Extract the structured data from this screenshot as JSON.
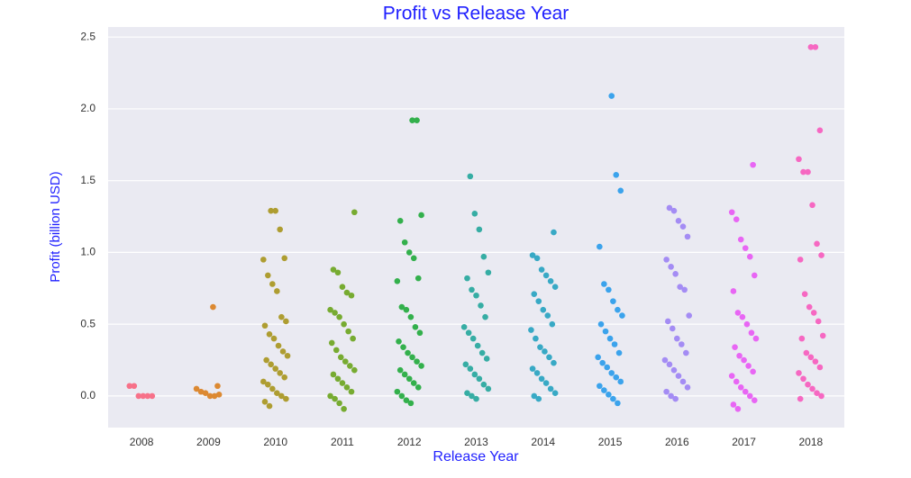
{
  "chart_data": {
    "type": "strip",
    "title": "Profit vs Release Year",
    "xlabel": "Release Year",
    "ylabel": "Profit (billion USD)",
    "categories": [
      "2008",
      "2009",
      "2010",
      "2011",
      "2012",
      "2013",
      "2014",
      "2015",
      "2016",
      "2017",
      "2018"
    ],
    "colors": [
      "#f77189",
      "#dc8932",
      "#ae9d31",
      "#77ab31",
      "#33b04c",
      "#36ada4",
      "#38a9c5",
      "#3ba3ec",
      "#a48cf4",
      "#e866f4",
      "#f668c2"
    ],
    "values": [
      [
        0.07,
        0.07,
        0.0,
        0.0,
        0.0,
        0.0
      ],
      [
        0.62,
        0.07,
        0.05,
        0.03,
        0.02,
        0.0,
        0.0,
        0.01
      ],
      [
        1.29,
        1.29,
        1.16,
        0.96,
        0.95,
        0.84,
        0.78,
        0.73,
        0.55,
        0.52,
        0.49,
        0.43,
        0.4,
        0.35,
        0.31,
        0.28,
        0.25,
        0.22,
        0.19,
        0.16,
        0.13,
        0.1,
        0.08,
        0.05,
        0.02,
        0.0,
        -0.02,
        -0.04,
        -0.07
      ],
      [
        1.28,
        0.88,
        0.86,
        0.76,
        0.72,
        0.7,
        0.6,
        0.58,
        0.55,
        0.5,
        0.45,
        0.4,
        0.37,
        0.32,
        0.27,
        0.24,
        0.21,
        0.18,
        0.15,
        0.12,
        0.09,
        0.06,
        0.03,
        0.0,
        -0.02,
        -0.05,
        -0.09
      ],
      [
        1.92,
        1.92,
        1.26,
        1.22,
        1.07,
        1.0,
        0.96,
        0.82,
        0.8,
        0.62,
        0.6,
        0.55,
        0.48,
        0.44,
        0.38,
        0.34,
        0.3,
        0.27,
        0.24,
        0.21,
        0.18,
        0.15,
        0.12,
        0.09,
        0.06,
        0.03,
        0.0,
        -0.03,
        -0.05
      ],
      [
        1.53,
        1.27,
        1.16,
        0.97,
        0.86,
        0.82,
        0.74,
        0.7,
        0.63,
        0.55,
        0.48,
        0.44,
        0.4,
        0.35,
        0.3,
        0.26,
        0.22,
        0.19,
        0.15,
        0.12,
        0.08,
        0.05,
        0.02,
        0.0,
        -0.02
      ],
      [
        1.14,
        0.98,
        0.96,
        0.88,
        0.84,
        0.8,
        0.76,
        0.71,
        0.66,
        0.6,
        0.56,
        0.5,
        0.46,
        0.4,
        0.34,
        0.31,
        0.27,
        0.23,
        0.19,
        0.16,
        0.12,
        0.09,
        0.05,
        0.02,
        0.0,
        -0.02
      ],
      [
        2.09,
        1.54,
        1.43,
        1.04,
        0.78,
        0.74,
        0.66,
        0.6,
        0.56,
        0.5,
        0.45,
        0.4,
        0.36,
        0.3,
        0.27,
        0.23,
        0.2,
        0.16,
        0.13,
        0.1,
        0.07,
        0.04,
        0.01,
        -0.02,
        -0.05
      ],
      [
        1.31,
        1.29,
        1.22,
        1.18,
        1.11,
        0.95,
        0.9,
        0.85,
        0.76,
        0.74,
        0.56,
        0.52,
        0.47,
        0.4,
        0.36,
        0.3,
        0.25,
        0.22,
        0.18,
        0.14,
        0.1,
        0.06,
        0.03,
        0.0,
        -0.02
      ],
      [
        1.61,
        1.28,
        1.23,
        1.09,
        1.03,
        0.97,
        0.84,
        0.73,
        0.58,
        0.55,
        0.5,
        0.44,
        0.4,
        0.34,
        0.28,
        0.25,
        0.21,
        0.17,
        0.14,
        0.1,
        0.06,
        0.03,
        0.0,
        -0.03,
        -0.06,
        -0.09
      ],
      [
        2.43,
        2.43,
        1.85,
        1.65,
        1.56,
        1.56,
        1.33,
        1.06,
        0.98,
        0.95,
        0.71,
        0.62,
        0.58,
        0.52,
        0.42,
        0.4,
        0.3,
        0.27,
        0.24,
        0.2,
        0.16,
        0.12,
        0.08,
        0.05,
        0.02,
        0.0,
        -0.02
      ]
    ],
    "ylim": [
      -0.22,
      2.57
    ],
    "yticks": [
      {
        "value": 0,
        "label": "0.0"
      },
      {
        "value": 0.5,
        "label": "0.5"
      },
      {
        "value": 1,
        "label": "1.0"
      },
      {
        "value": 1.5,
        "label": "1.5"
      },
      {
        "value": 2,
        "label": "2.0"
      },
      {
        "value": 2.5,
        "label": "2.5"
      }
    ],
    "grid": true
  }
}
